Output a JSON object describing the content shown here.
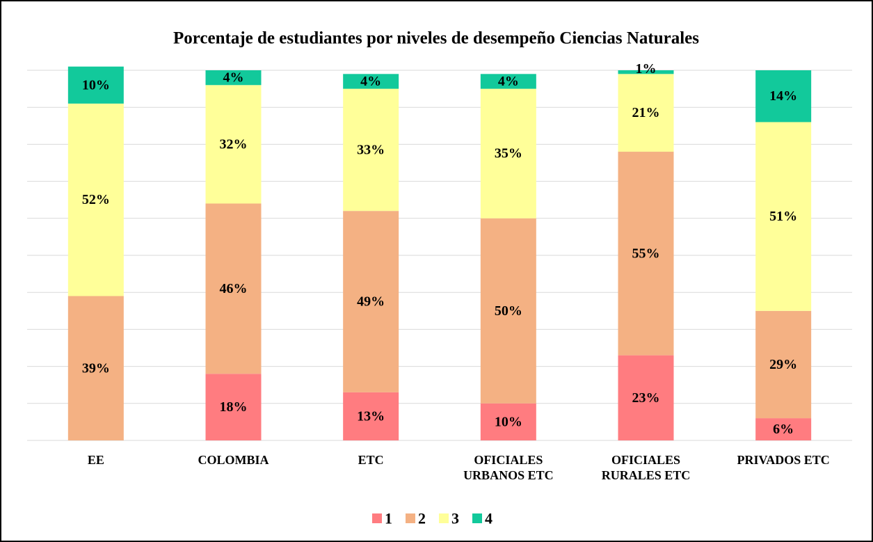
{
  "chart_data": {
    "type": "stacked_bar",
    "title": "Porcentaje de estudiantes por niveles de desempeño Ciencias Naturales",
    "categories": [
      "EE",
      "COLOMBIA",
      "ETC",
      "OFICIALES URBANOS ETC",
      "OFICIALES RURALES ETC",
      "PRIVADOS ETC"
    ],
    "series": [
      {
        "name": "1",
        "color": "#ff7c80",
        "values": [
          null,
          18,
          13,
          10,
          23,
          6
        ],
        "value_labels": [
          null,
          "18%",
          "13%",
          "10%",
          "23%",
          "6%"
        ]
      },
      {
        "name": "2",
        "color": "#f4b183",
        "values": [
          39,
          46,
          49,
          50,
          55,
          29
        ],
        "value_labels": [
          "39%",
          "46%",
          "49%",
          "50%",
          "55%",
          "29%"
        ]
      },
      {
        "name": "3",
        "color": "#ffff99",
        "values": [
          52,
          32,
          33,
          35,
          21,
          51
        ],
        "value_labels": [
          "52%",
          "32%",
          "33%",
          "35%",
          "21%",
          "51%"
        ]
      },
      {
        "name": "4",
        "color": "#12c99b",
        "values": [
          10,
          4,
          4,
          4,
          1,
          14
        ],
        "value_labels": [
          "10%",
          "4%",
          "4%",
          "4%",
          "1%",
          "14%"
        ]
      }
    ],
    "ylim": [
      0,
      100
    ],
    "yticks": [
      0,
      10,
      20,
      30,
      40,
      50,
      60,
      70,
      80,
      90,
      100
    ],
    "grid": true,
    "legend": "bottom"
  }
}
